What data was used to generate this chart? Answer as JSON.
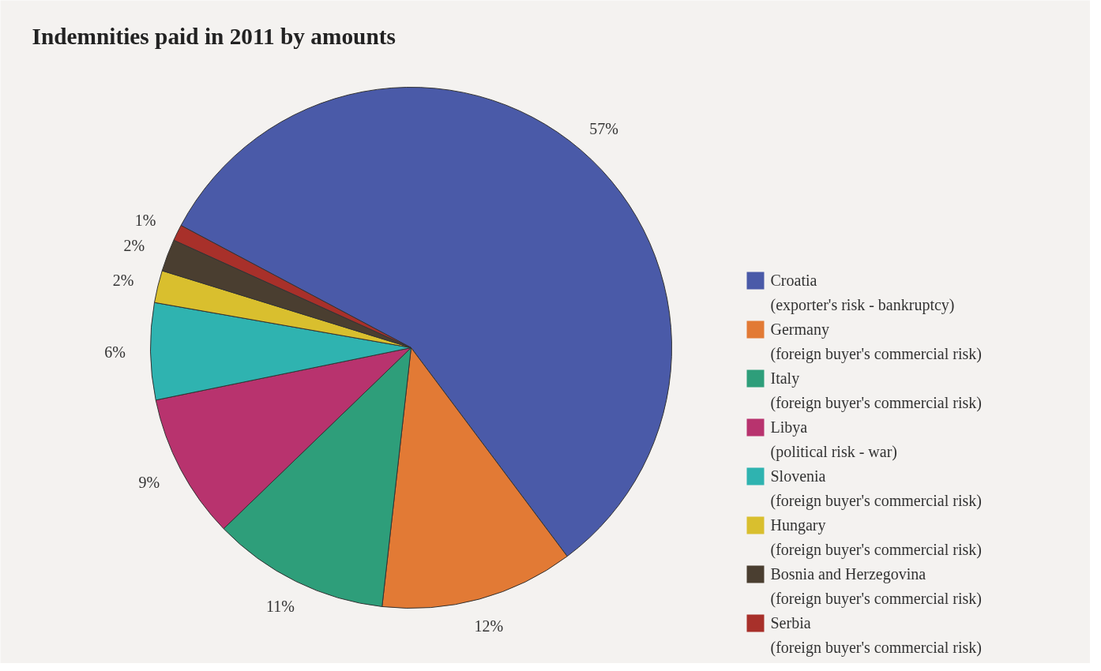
{
  "chart_data": {
    "type": "pie",
    "title": "Indemnities paid in 2011 by amounts",
    "categories": [
      "Croatia\n(exporter's risk - bankruptcy)",
      "Germany\n(foreign buyer's commercial risk)",
      "Italy\n(foreign buyer's commercial risk)",
      "Libya\n(political risk - war)",
      "Slovenia\n(foreign buyer's commercial risk)",
      "Hungary\n(foreign buyer's commercial risk)",
      "Bosnia and Herzegovina\n(foreign buyer's commercial risk)",
      "Serbia\n(foreign buyer's commercial risk)"
    ],
    "values": [
      57,
      12,
      11,
      9,
      6,
      2,
      2,
      1
    ],
    "colors": [
      "#4a5aa8",
      "#e27a35",
      "#2e9e7a",
      "#b8336e",
      "#2fb3b0",
      "#d9bf2e",
      "#4a3e30",
      "#a8302a"
    ],
    "value_labels": [
      "57%",
      "12%",
      "11%",
      "9%",
      "6%",
      "2%",
      "2%",
      "1%"
    ],
    "legend": "right"
  }
}
